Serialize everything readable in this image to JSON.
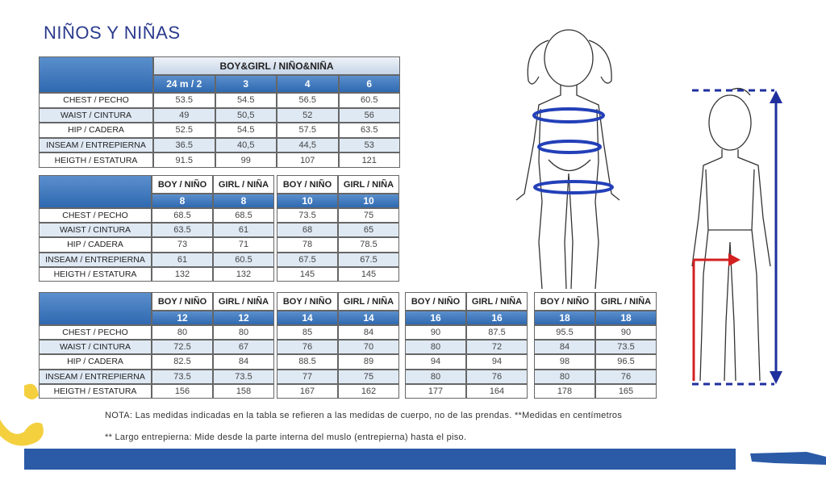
{
  "title": "NIÑOS Y NIÑAS",
  "tables": [
    {
      "header": "BOY&GIRL / NIÑO&NIÑA",
      "sizes": [
        "24 m / 2",
        "3",
        "4",
        "6"
      ],
      "row_labels": [
        "CHEST / PECHO",
        "WAIST / CINTURA",
        "HIP / CADERA",
        "INSEAM / ENTREPIERNA",
        "HEIGTH / ESTATURA"
      ],
      "rows": [
        [
          "53.5",
          "54.5",
          "56.5",
          "60.5"
        ],
        [
          "49",
          "50,5",
          "52",
          "56"
        ],
        [
          "52.5",
          "54.5",
          "57.5",
          "63.5"
        ],
        [
          "36.5",
          "40,5",
          "44,5",
          "53"
        ],
        [
          "91.5",
          "99",
          "107",
          "121"
        ]
      ]
    },
    {
      "row_labels": [
        "CHEST / PECHO",
        "WAIST / CINTURA",
        "HIP / CADERA",
        "INSEAM / ENTREPIERNA",
        "HEIGTH / ESTATURA"
      ],
      "blocks": [
        {
          "columns": [
            "BOY / NIÑO",
            "GIRL / NIÑA"
          ],
          "sizes": [
            "8",
            "8"
          ],
          "rows": [
            [
              "68.5",
              "68.5"
            ],
            [
              "63.5",
              "61"
            ],
            [
              "73",
              "71"
            ],
            [
              "61",
              "60.5"
            ],
            [
              "132",
              "132"
            ]
          ]
        },
        {
          "columns": [
            "BOY / NIÑO",
            "GIRL / NIÑA"
          ],
          "sizes": [
            "10",
            "10"
          ],
          "rows": [
            [
              "73.5",
              "75"
            ],
            [
              "68",
              "65"
            ],
            [
              "78",
              "78.5"
            ],
            [
              "67.5",
              "67.5"
            ],
            [
              "145",
              "145"
            ]
          ]
        }
      ]
    },
    {
      "row_labels": [
        "CHEST / PECHO",
        "WAIST / CINTURA",
        "HIP / CADERA",
        "INSEAM / ENTREPIERNA",
        "HEIGTH / ESTATURA"
      ],
      "blocks": [
        {
          "columns": [
            "BOY / NIÑO",
            "GIRL / NIÑA"
          ],
          "sizes": [
            "12",
            "12"
          ],
          "rows": [
            [
              "80",
              "80"
            ],
            [
              "72.5",
              "67"
            ],
            [
              "82.5",
              "84"
            ],
            [
              "73.5",
              "73.5"
            ],
            [
              "156",
              "158"
            ]
          ]
        },
        {
          "columns": [
            "BOY / NIÑO",
            "GIRL / NIÑA"
          ],
          "sizes": [
            "14",
            "14"
          ],
          "rows": [
            [
              "85",
              "84"
            ],
            [
              "76",
              "70"
            ],
            [
              "88.5",
              "89"
            ],
            [
              "77",
              "75"
            ],
            [
              "167",
              "162"
            ]
          ]
        },
        {
          "columns": [
            "BOY / NIÑO",
            "GIRL / NIÑA"
          ],
          "sizes": [
            "16",
            "16"
          ],
          "rows": [
            [
              "90",
              "87.5"
            ],
            [
              "80",
              "72"
            ],
            [
              "94",
              "94"
            ],
            [
              "80",
              "76"
            ],
            [
              "177",
              "164"
            ]
          ]
        },
        {
          "columns": [
            "BOY / NIÑO",
            "GIRL / NIÑA"
          ],
          "sizes": [
            "18",
            "18"
          ],
          "rows": [
            [
              "95.5",
              "90"
            ],
            [
              "84",
              "73.5"
            ],
            [
              "98",
              "96.5"
            ],
            [
              "80",
              "76"
            ],
            [
              "178",
              "165"
            ]
          ]
        }
      ]
    }
  ],
  "notes": [
    "NOTA: Las medidas indicadas en la tabla se refieren a las medidas de cuerpo, no de las prendas. **Medidas en centímetros",
    "** Largo entrepierna: Mide desde la parte interna del muslo (entrepierna) hasta el piso."
  ]
}
